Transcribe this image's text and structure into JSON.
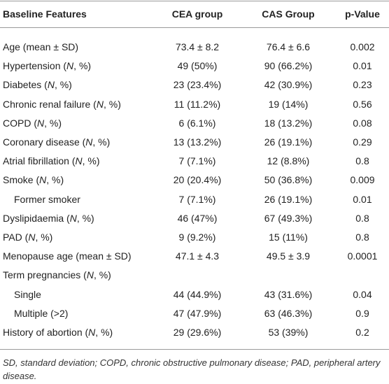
{
  "table": {
    "header": [
      "Baseline Features",
      "CEA group",
      "CAS Group",
      "p-Value"
    ],
    "rows": [
      {
        "label": "Age (mean ± SD)",
        "values": [
          "73.4 ± 8.2",
          "76.4 ± 6.6",
          "0.002"
        ]
      },
      {
        "label": "Hypertension (N, %)",
        "values": [
          "49 (50%)",
          "90 (66.2%)",
          "0.01"
        ]
      },
      {
        "label": "Diabetes (N, %)",
        "values": [
          "23 (23.4%)",
          "42 (30.9%)",
          "0.23"
        ]
      },
      {
        "label": "Chronic renal failure (N, %)",
        "values": [
          "11 (11.2%)",
          "19 (14%)",
          "0.56"
        ]
      },
      {
        "label": "COPD (N, %)",
        "values": [
          "6 (6.1%)",
          "18 (13.2%)",
          "0.08"
        ]
      },
      {
        "label": "Coronary disease (N, %)",
        "values": [
          "13 (13.2%)",
          "26 (19.1%)",
          "0.29"
        ]
      },
      {
        "label": "Atrial fibrillation (N, %)",
        "values": [
          "7 (7.1%)",
          "12 (8.8%)",
          "0.8"
        ]
      },
      {
        "label": "Smoke (N, %)",
        "values": [
          "20 (20.4%)",
          "50 (36.8%)",
          "0.009"
        ],
        "subrows": [
          {
            "label": "Former smoker",
            "values": [
              "7 (7.1%)",
              "26 (19.1%)",
              "0.01"
            ]
          }
        ]
      },
      {
        "label": "Dyslipidaemia (N, %)",
        "values": [
          "46 (47%)",
          "67 (49.3%)",
          "0.8"
        ]
      },
      {
        "label": "PAD (N, %)",
        "values": [
          "9 (9.2%)",
          "15 (11%)",
          "0.8"
        ]
      },
      {
        "label": "Menopause age (mean ± SD)",
        "values": [
          "47.1 ± 4.3",
          "49.5 ± 3.9",
          "0.0001"
        ]
      },
      {
        "label": "Term pregnancies (N, %)",
        "subrows": [
          {
            "label": "Single",
            "values": [
              "44 (44.9%)",
              "43 (31.6%)",
              "0.04"
            ]
          },
          {
            "label": "Multiple (>2)",
            "values": [
              "47 (47.9%)",
              "63 (46.3%)",
              "0.9"
            ]
          }
        ]
      },
      {
        "label": "History of abortion (N, %)",
        "values": [
          "29 (29.6%)",
          "53 (39%)",
          "0.2"
        ]
      }
    ]
  },
  "footnote": "SD, standard deviation; COPD, chronic obstructive pulmonary disease; PAD, peripheral artery disease."
}
